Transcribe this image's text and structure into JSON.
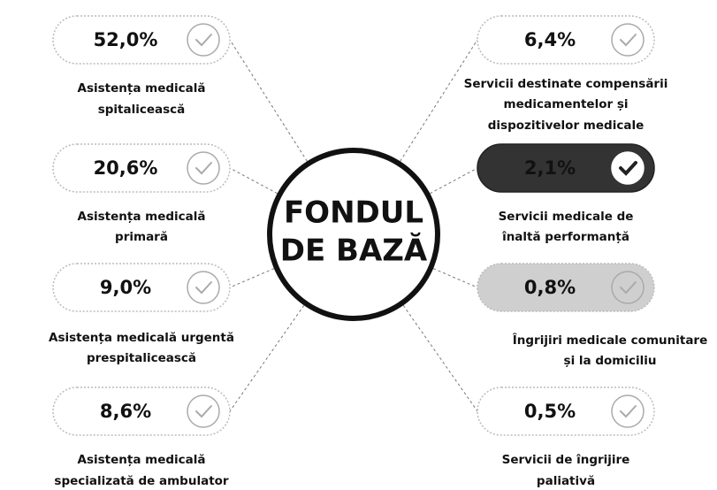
{
  "center": {
    "lines": [
      "FONDUL",
      "DE BAZĂ"
    ]
  },
  "items": [
    {
      "value": "52,0%",
      "label": [
        "Asistența medicală",
        "spitalicească"
      ]
    },
    {
      "value": "20,6%",
      "label": [
        "Asistența medicală",
        "primară"
      ]
    },
    {
      "value": "9,0%",
      "label": [
        "Asistența medicală urgentă",
        "prespitalicească"
      ]
    },
    {
      "value": "8,6%",
      "label": [
        "Asistența medicală",
        "specializată de ambulator"
      ]
    },
    {
      "value": "6,4%",
      "label": [
        "Servicii destinate compensării",
        "medicamentelor și",
        "dispozitivelor medicale"
      ]
    },
    {
      "value": "2,1%",
      "label": [
        "Servicii medicale de",
        "înaltă performanță"
      ]
    },
    {
      "value": "0,8%",
      "label": [
        "Îngrijiri medicale comunitare",
        "și la domiciliu"
      ]
    },
    {
      "value": "0,5%",
      "label": [
        "Servicii de îngrijire",
        "paliativă"
      ]
    }
  ]
}
